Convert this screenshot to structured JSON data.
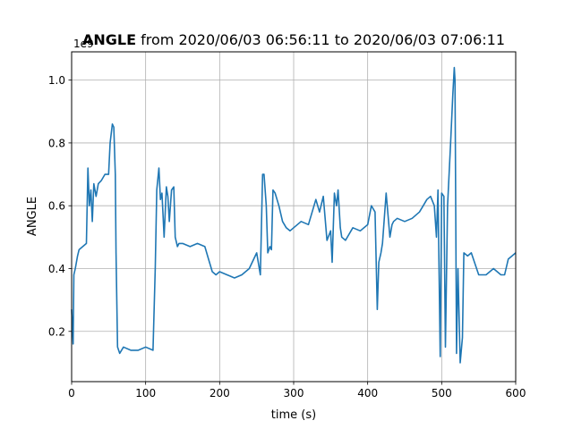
{
  "chart_data": {
    "type": "line",
    "title_bold": "ANGLE",
    "title_rest": " from 2020/06/03 06:56:11 to 2020/06/03 07:06:11",
    "xlabel": "time (s)",
    "ylabel": "ANGLE",
    "y_offset_label": "1e9",
    "xlim": [
      0,
      600
    ],
    "ylim": [
      0.04,
      1.09
    ],
    "x_ticks": [
      0,
      100,
      200,
      300,
      400,
      500,
      600
    ],
    "x_tick_labels": [
      "0",
      "100",
      "200",
      "300",
      "400",
      "500",
      "600"
    ],
    "y_ticks": [
      0.2,
      0.4,
      0.6,
      0.8,
      1.0
    ],
    "y_tick_labels": [
      "0.2",
      "0.4",
      "0.6",
      "0.8",
      "1.0"
    ],
    "grid": true,
    "line_color": "#1f77b4",
    "series": [
      {
        "x": [
          0,
          2,
          3,
          5,
          8,
          10,
          15,
          20,
          22,
          24,
          26,
          28,
          30,
          33,
          36,
          40,
          45,
          50,
          52,
          55,
          57,
          59,
          60,
          62,
          65,
          70,
          80,
          90,
          100,
          110,
          113,
          115,
          118,
          120,
          122,
          125,
          128,
          130,
          132,
          135,
          138,
          140,
          143,
          145,
          150,
          160,
          170,
          180,
          185,
          190,
          195,
          200,
          210,
          220,
          230,
          240,
          250,
          255,
          258,
          260,
          263,
          265,
          268,
          270,
          272,
          275,
          280,
          285,
          290,
          295,
          300,
          310,
          320,
          330,
          335,
          340,
          345,
          350,
          352,
          355,
          358,
          360,
          363,
          365,
          370,
          380,
          390,
          400,
          405,
          410,
          413,
          415,
          418,
          420,
          425,
          430,
          433,
          435,
          440,
          450,
          460,
          470,
          475,
          480,
          485,
          490,
          493,
          495,
          498,
          500,
          503,
          505,
          508,
          512,
          515,
          517,
          518,
          520,
          522,
          525,
          528,
          530,
          535,
          540,
          550,
          560,
          570,
          580,
          585,
          590,
          595,
          600
        ],
        "y": [
          0.27,
          0.16,
          0.38,
          0.4,
          0.44,
          0.46,
          0.47,
          0.48,
          0.72,
          0.6,
          0.65,
          0.55,
          0.67,
          0.63,
          0.67,
          0.68,
          0.7,
          0.7,
          0.8,
          0.86,
          0.85,
          0.7,
          0.45,
          0.15,
          0.13,
          0.15,
          0.14,
          0.14,
          0.15,
          0.14,
          0.4,
          0.65,
          0.72,
          0.62,
          0.64,
          0.5,
          0.66,
          0.63,
          0.55,
          0.65,
          0.66,
          0.5,
          0.47,
          0.48,
          0.48,
          0.47,
          0.48,
          0.47,
          0.43,
          0.39,
          0.38,
          0.39,
          0.38,
          0.37,
          0.38,
          0.4,
          0.45,
          0.38,
          0.7,
          0.7,
          0.6,
          0.45,
          0.47,
          0.46,
          0.65,
          0.64,
          0.6,
          0.55,
          0.53,
          0.52,
          0.53,
          0.55,
          0.54,
          0.62,
          0.58,
          0.63,
          0.49,
          0.52,
          0.42,
          0.64,
          0.6,
          0.65,
          0.53,
          0.5,
          0.49,
          0.53,
          0.52,
          0.54,
          0.6,
          0.58,
          0.27,
          0.42,
          0.45,
          0.48,
          0.64,
          0.5,
          0.54,
          0.55,
          0.56,
          0.55,
          0.56,
          0.58,
          0.6,
          0.62,
          0.63,
          0.6,
          0.5,
          0.65,
          0.12,
          0.64,
          0.63,
          0.15,
          0.6,
          0.8,
          0.95,
          1.04,
          1.0,
          0.13,
          0.4,
          0.1,
          0.18,
          0.45,
          0.44,
          0.45,
          0.38,
          0.38,
          0.4,
          0.38,
          0.38,
          0.43,
          0.44,
          0.45
        ]
      }
    ]
  }
}
